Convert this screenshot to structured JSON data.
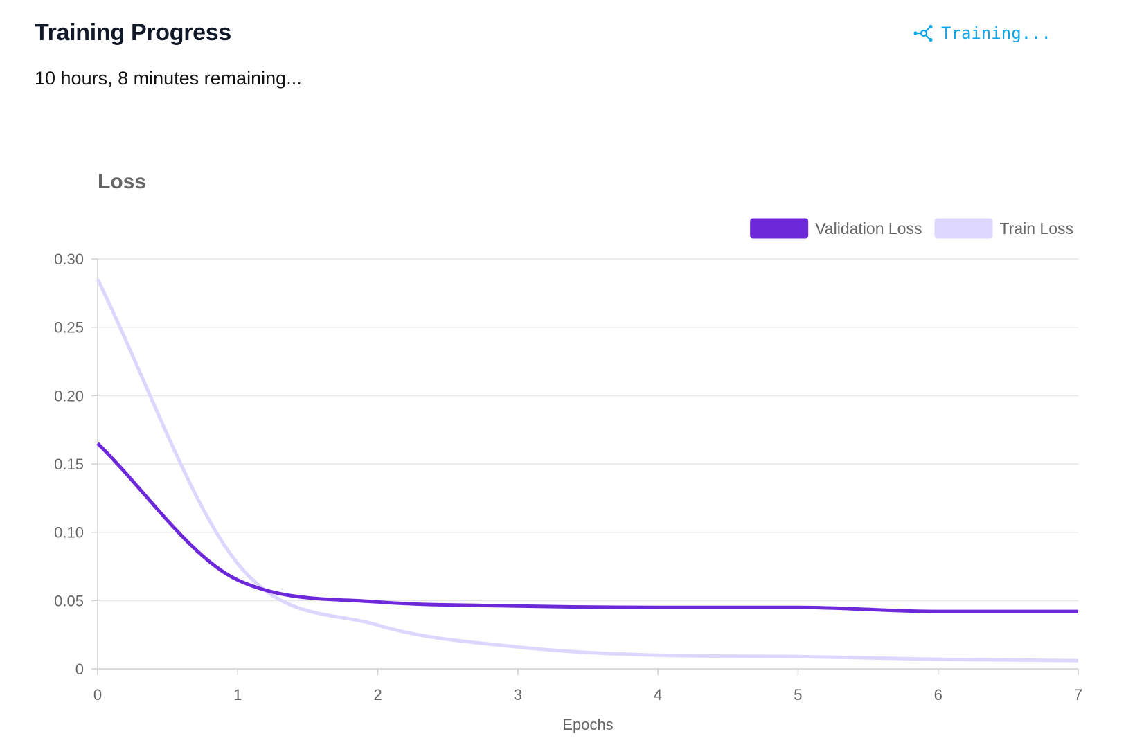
{
  "header": {
    "title": "Training Progress",
    "status_label": "Training...",
    "remaining_text": "10 hours, 8 minutes remaining..."
  },
  "colors": {
    "status": "#0ea5e9",
    "title": "#111827",
    "grid": "#e5e5e5",
    "axis_text": "#666666"
  },
  "icons": {
    "status_icon": "network-nodes-icon"
  },
  "chart_data": {
    "type": "line",
    "title": "Loss",
    "xlabel": "Epochs",
    "ylabel": "",
    "x": [
      0,
      1,
      2,
      3,
      4,
      5,
      6,
      7
    ],
    "xlim": [
      0,
      7
    ],
    "ylim": [
      0,
      0.3
    ],
    "yticks": [
      0,
      0.05,
      0.1,
      0.15,
      0.2,
      0.25,
      0.3
    ],
    "ytick_labels": [
      "0",
      "0.05",
      "0.10",
      "0.15",
      "0.20",
      "0.25",
      "0.30"
    ],
    "xticks": [
      0,
      1,
      2,
      3,
      4,
      5,
      6,
      7
    ],
    "grid": true,
    "legend_position": "top-right",
    "smooth": true,
    "series": [
      {
        "name": "Validation Loss",
        "color": "#6d28d9",
        "values": [
          0.165,
          0.065,
          0.049,
          0.046,
          0.045,
          0.045,
          0.042,
          0.042
        ]
      },
      {
        "name": "Train Loss",
        "color": "#ddd6fe",
        "values": [
          0.285,
          0.077,
          0.032,
          0.016,
          0.01,
          0.009,
          0.007,
          0.006
        ]
      }
    ]
  }
}
